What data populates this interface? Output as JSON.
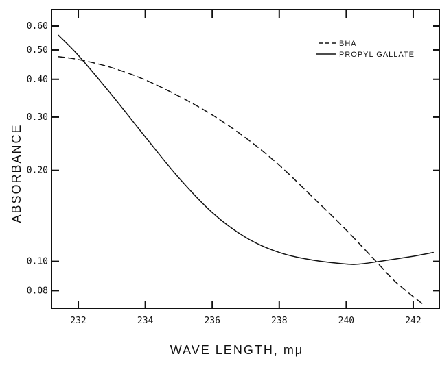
{
  "chart_data": {
    "type": "line",
    "xlabel": "WAVE LENGTH, mμ",
    "ylabel": "ABSORBANCE",
    "xlim": [
      231.2,
      242.8
    ],
    "ylim": [
      0.07,
      0.68
    ],
    "y_scale": "log",
    "grid": false,
    "legend_position": "top-right",
    "x_ticks": [
      {
        "value": 232,
        "label": "232"
      },
      {
        "value": 234,
        "label": "234"
      },
      {
        "value": 236,
        "label": "236"
      },
      {
        "value": 238,
        "label": "238"
      },
      {
        "value": 240,
        "label": "240"
      },
      {
        "value": 242,
        "label": "242"
      }
    ],
    "y_ticks": [
      {
        "value": 0.6,
        "label": "0.60"
      },
      {
        "value": 0.5,
        "label": "0.50"
      },
      {
        "value": 0.4,
        "label": "0.40"
      },
      {
        "value": 0.3,
        "label": "0.30"
      },
      {
        "value": 0.2,
        "label": "0.20"
      },
      {
        "value": 0.1,
        "label": "0.10"
      },
      {
        "value": 0.08,
        "label": "0.08"
      }
    ],
    "series": [
      {
        "name": "BHA",
        "dash": "dashed",
        "x": [
          231.4,
          232.0,
          233.0,
          234.0,
          235.0,
          236.0,
          237.0,
          238.0,
          239.0,
          240.0,
          241.0,
          241.5,
          242.3
        ],
        "y": [
          0.475,
          0.465,
          0.437,
          0.398,
          0.352,
          0.305,
          0.256,
          0.208,
          0.163,
          0.127,
          0.097,
          0.085,
          0.072
        ]
      },
      {
        "name": "PROPYL GALLATE",
        "dash": "solid",
        "x": [
          231.4,
          232.0,
          233.0,
          234.0,
          235.0,
          236.0,
          237.0,
          238.0,
          239.0,
          240.0,
          240.4,
          241.0,
          242.0,
          242.6
        ],
        "y": [
          0.56,
          0.48,
          0.355,
          0.258,
          0.189,
          0.145,
          0.12,
          0.107,
          0.101,
          0.098,
          0.098,
          0.1,
          0.104,
          0.107
        ]
      }
    ]
  }
}
